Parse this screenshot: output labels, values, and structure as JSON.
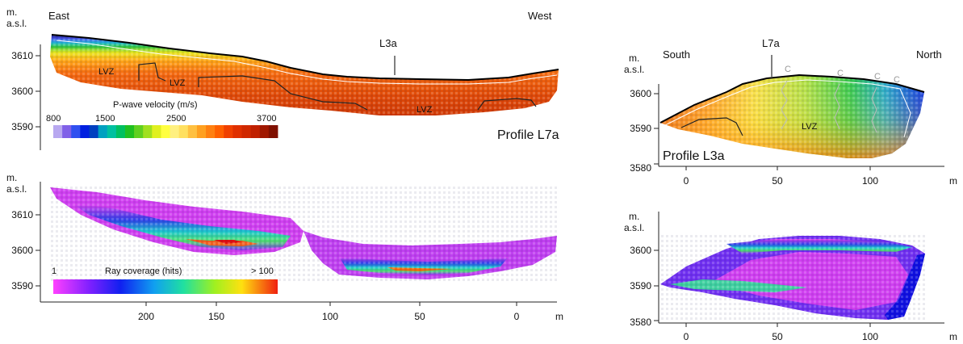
{
  "panels": {
    "l7a_velocity": {
      "unit_top": "m.",
      "unit_bottom": "a.s.l.",
      "direction_left": "East",
      "direction_right": "West",
      "crossing_label": "L3a",
      "lvz_labels": [
        "LVZ",
        "LVZ",
        "LVZ"
      ],
      "profile_label": "Profile L7a",
      "y_ticks": [
        "3610",
        "3600",
        "3590"
      ],
      "colorbar": {
        "title": "P-wave velocity (m/s)",
        "tick_labels": [
          "800",
          "1500",
          "2500",
          "3700"
        ],
        "colors": [
          "#b8a8f0",
          "#8060e8",
          "#3050f0",
          "#0020e0",
          "#0040c0",
          "#00a0c0",
          "#00c0a0",
          "#00c060",
          "#20c020",
          "#60d020",
          "#a0e020",
          "#e0f020",
          "#ffff40",
          "#fff080",
          "#ffe060",
          "#ffc040",
          "#ffa020",
          "#ff8010",
          "#ff6000",
          "#f04000",
          "#e03000",
          "#d02800",
          "#c02000",
          "#a01800",
          "#801000"
        ]
      }
    },
    "l7a_coverage": {
      "unit_top": "m.",
      "unit_bottom": "a.s.l.",
      "y_ticks": [
        "3610",
        "3600",
        "3590"
      ],
      "x_ticks": [
        "200",
        "150",
        "100",
        "50",
        "0"
      ],
      "x_unit": "m",
      "colorbar": {
        "title": "Ray coverage (hits)",
        "min_label": "1",
        "max_label": "> 100"
      }
    },
    "l3a_velocity": {
      "unit_top": "m.",
      "unit_bottom": "a.s.l.",
      "direction_left": "South",
      "direction_right": "North",
      "crossing_label": "L7a",
      "lvz_label": "LVZ",
      "c_markers": [
        "C",
        "C",
        "C",
        "C"
      ],
      "profile_label": "Profile L3a",
      "y_ticks": [
        "3600",
        "3590",
        "3580"
      ],
      "x_ticks": [
        "0",
        "50",
        "100"
      ],
      "x_unit": "m"
    },
    "l3a_coverage": {
      "unit_top": "m.",
      "unit_bottom": "a.s.l.",
      "y_ticks": [
        "3600",
        "3590",
        "3580"
      ],
      "x_ticks": [
        "0",
        "50",
        "100"
      ],
      "x_unit": "m"
    }
  }
}
